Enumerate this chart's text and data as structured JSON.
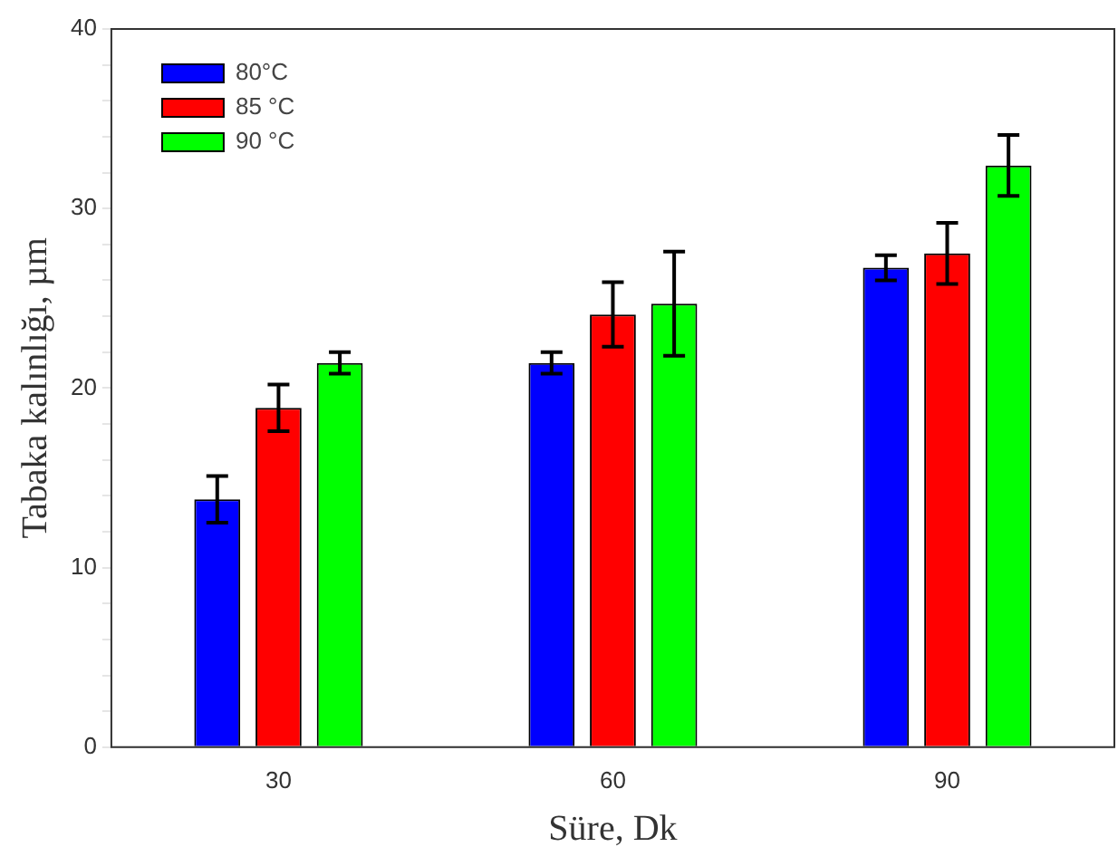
{
  "chart_data": {
    "type": "bar",
    "xlabel": "Süre, Dk",
    "ylabel": "Tabaka kalınlığı, µm",
    "categories": [
      "30",
      "60",
      "90"
    ],
    "series": [
      {
        "name": "80°C",
        "color": "#0000ff",
        "values": [
          13.8,
          21.4,
          26.7
        ],
        "errors": [
          1.3,
          0.6,
          0.7
        ]
      },
      {
        "name": "85 °C",
        "color": "#ff0000",
        "values": [
          18.9,
          24.1,
          27.5
        ],
        "errors": [
          1.3,
          1.8,
          1.7
        ]
      },
      {
        "name": "90 °C",
        "color": "#00ff00",
        "values": [
          21.4,
          24.7,
          32.4
        ],
        "errors": [
          0.6,
          2.9,
          1.7
        ]
      }
    ],
    "ylim": [
      0,
      40
    ],
    "yticks": [
      0,
      {
        "value": 2,
        "label": null
      },
      {
        "value": 4,
        "label": null
      },
      {
        "value": 6,
        "label": null
      },
      {
        "value": 8,
        "label": null
      },
      10,
      {
        "value": 12,
        "label": null
      },
      {
        "value": 14,
        "label": null
      },
      {
        "value": 16,
        "label": null
      },
      {
        "value": 18,
        "label": null
      },
      20,
      {
        "value": 22,
        "label": null
      },
      {
        "value": 24,
        "label": null
      },
      {
        "value": 26,
        "label": null
      },
      {
        "value": 28,
        "label": null
      },
      30,
      {
        "value": 32,
        "label": null
      },
      {
        "value": 34,
        "label": null
      },
      {
        "value": 36,
        "label": null
      },
      {
        "value": 38,
        "label": null
      },
      40
    ],
    "grid": false,
    "legend": "top left"
  }
}
